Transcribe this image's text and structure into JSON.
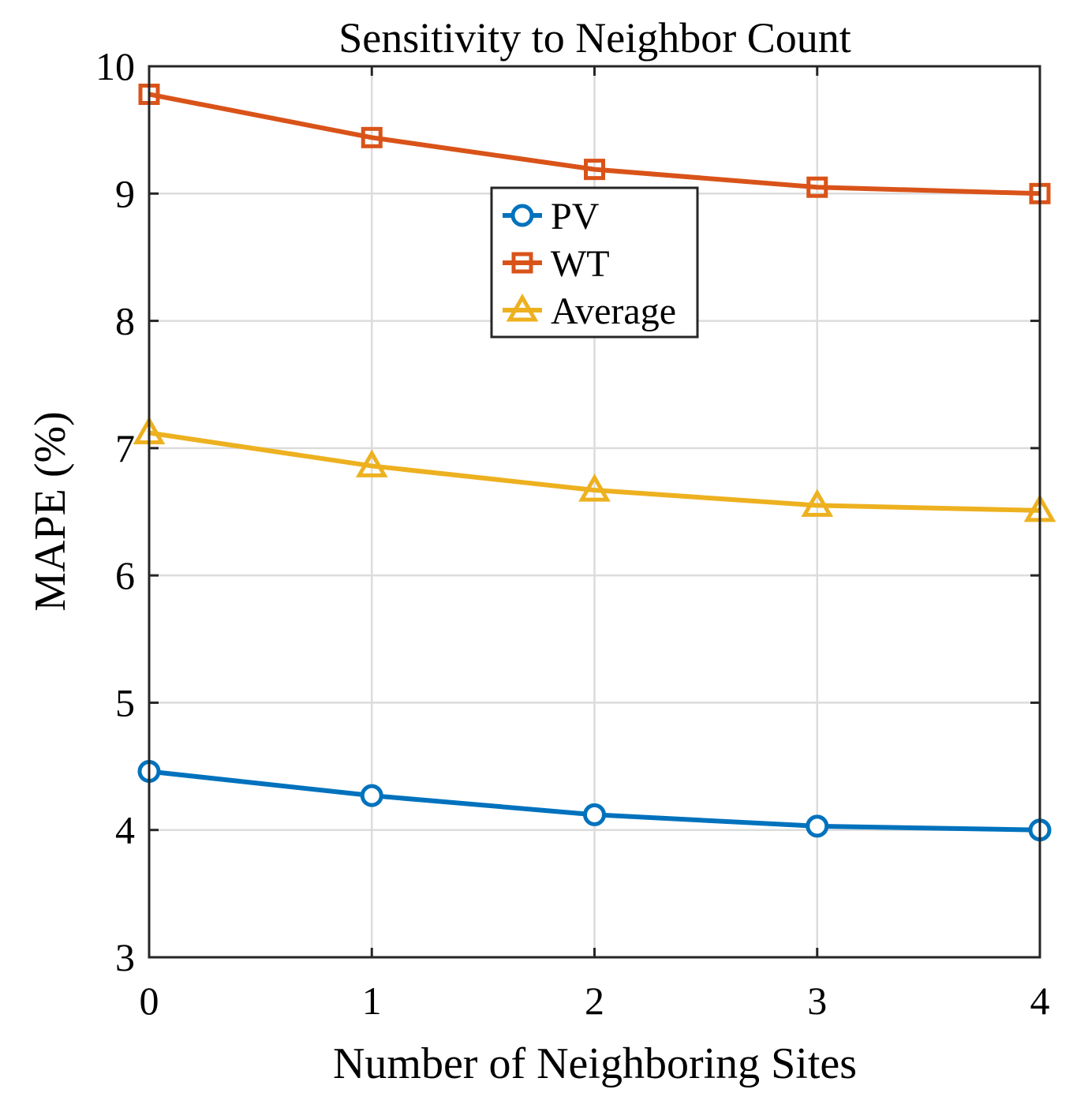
{
  "chart_data": {
    "type": "line",
    "title": "Sensitivity to Neighbor Count",
    "xlabel": "Number of Neighboring Sites",
    "ylabel": "MAPE (%)",
    "x": [
      0,
      1,
      2,
      3,
      4
    ],
    "xlim": [
      0,
      4
    ],
    "ylim": [
      3,
      10
    ],
    "xticks": [
      "0",
      "1",
      "2",
      "3",
      "4"
    ],
    "yticks": [
      "3",
      "4",
      "5",
      "6",
      "7",
      "8",
      "9",
      "10"
    ],
    "grid": true,
    "legend_position": "top-center",
    "series": [
      {
        "name": "PV",
        "color": "#0072BD",
        "marker": "circle",
        "values": [
          4.46,
          4.27,
          4.12,
          4.03,
          4.0
        ]
      },
      {
        "name": "WT",
        "color": "#D95319",
        "marker": "square",
        "values": [
          9.78,
          9.44,
          9.19,
          9.05,
          9.0
        ]
      },
      {
        "name": "Average",
        "color": "#EDB120",
        "marker": "triangle",
        "values": [
          7.12,
          6.86,
          6.67,
          6.55,
          6.51
        ]
      }
    ]
  }
}
